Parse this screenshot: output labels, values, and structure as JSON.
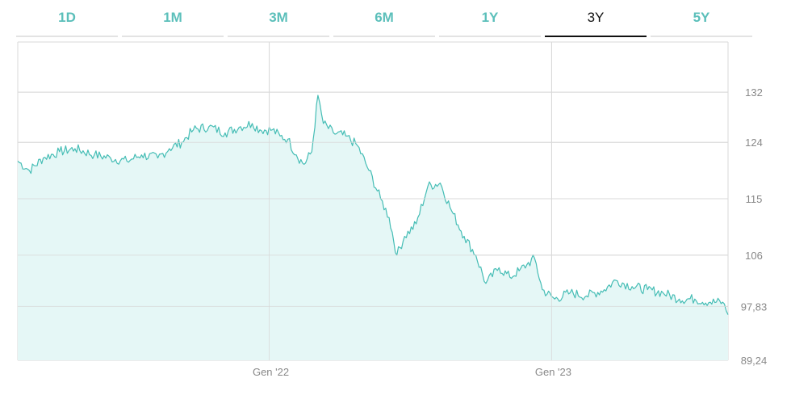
{
  "tabs": [
    {
      "label": "1D",
      "active": false
    },
    {
      "label": "1M",
      "active": false
    },
    {
      "label": "3M",
      "active": false
    },
    {
      "label": "6M",
      "active": false
    },
    {
      "label": "1Y",
      "active": false
    },
    {
      "label": "3Y",
      "active": true
    },
    {
      "label": "5Y",
      "active": false
    }
  ],
  "colors": {
    "accent": "#5bbfba",
    "line": "#45bdb5",
    "fill": "#e5f7f6",
    "grid": "#d9d9d9",
    "axis_text": "#888888",
    "active_tab": "#111111"
  },
  "chart_data": {
    "type": "area",
    "title": "",
    "xlabel": "",
    "ylabel": "",
    "grid": true,
    "y_axis_side": "right",
    "ylim": [
      89.24,
      140
    ],
    "y_ticks": [
      132,
      124,
      115,
      106,
      97.83,
      89.24
    ],
    "y_tick_labels": [
      "132",
      "124",
      "115",
      "106",
      "97,83",
      "89,24"
    ],
    "x_ticks": [
      "2022-01-01",
      "2023-01-01"
    ],
    "x_tick_labels": [
      "Gen '22",
      "Gen '23"
    ],
    "xlim": [
      "2021-02-10",
      "2023-08-17"
    ],
    "series": [
      {
        "points": [
          [
            "2021-02-10",
            121.0
          ],
          [
            "2021-02-25",
            119.5
          ],
          [
            "2021-03-15",
            121.5
          ],
          [
            "2021-04-05",
            122.5
          ],
          [
            "2021-04-25",
            123.0
          ],
          [
            "2021-05-20",
            122.0
          ],
          [
            "2021-06-10",
            121.5
          ],
          [
            "2021-07-01",
            121.0
          ],
          [
            "2021-07-20",
            122.0
          ],
          [
            "2021-08-10",
            121.5
          ],
          [
            "2021-08-25",
            123.0
          ],
          [
            "2021-09-10",
            124.0
          ],
          [
            "2021-09-25",
            126.0
          ],
          [
            "2021-10-15",
            126.5
          ],
          [
            "2021-11-05",
            125.5
          ],
          [
            "2021-11-25",
            126.5
          ],
          [
            "2021-12-10",
            127.0
          ],
          [
            "2021-12-20",
            126.0
          ],
          [
            "2022-01-05",
            126.0
          ],
          [
            "2022-01-15",
            125.0
          ],
          [
            "2022-01-25",
            124.5
          ],
          [
            "2022-02-05",
            122.0
          ],
          [
            "2022-02-15",
            120.5
          ],
          [
            "2022-02-25",
            122.5
          ],
          [
            "2022-03-05",
            131.5
          ],
          [
            "2022-03-12",
            127.0
          ],
          [
            "2022-03-25",
            125.5
          ],
          [
            "2022-04-10",
            125.0
          ],
          [
            "2022-04-25",
            123.5
          ],
          [
            "2022-05-10",
            119.5
          ],
          [
            "2022-05-25",
            115.0
          ],
          [
            "2022-06-05",
            112.0
          ],
          [
            "2022-06-15",
            106.0
          ],
          [
            "2022-06-25",
            109.0
          ],
          [
            "2022-07-10",
            111.0
          ],
          [
            "2022-07-25",
            117.0
          ],
          [
            "2022-08-10",
            117.5
          ],
          [
            "2022-08-25",
            113.0
          ],
          [
            "2022-09-10",
            109.0
          ],
          [
            "2022-09-25",
            106.0
          ],
          [
            "2022-10-08",
            101.5
          ],
          [
            "2022-10-25",
            104.0
          ],
          [
            "2022-11-08",
            102.5
          ],
          [
            "2022-11-20",
            103.5
          ],
          [
            "2022-11-30",
            104.5
          ],
          [
            "2022-12-10",
            105.5
          ],
          [
            "2022-12-20",
            100.5
          ],
          [
            "2023-01-05",
            99.0
          ],
          [
            "2023-01-25",
            100.0
          ],
          [
            "2023-02-15",
            99.5
          ],
          [
            "2023-03-10",
            100.5
          ],
          [
            "2023-03-25",
            102.0
          ],
          [
            "2023-04-15",
            101.0
          ],
          [
            "2023-05-05",
            100.5
          ],
          [
            "2023-05-25",
            100.0
          ],
          [
            "2023-06-15",
            99.0
          ],
          [
            "2023-07-05",
            99.0
          ],
          [
            "2023-07-25",
            98.5
          ],
          [
            "2023-08-10",
            98.5
          ],
          [
            "2023-08-17",
            96.5
          ]
        ]
      }
    ]
  }
}
